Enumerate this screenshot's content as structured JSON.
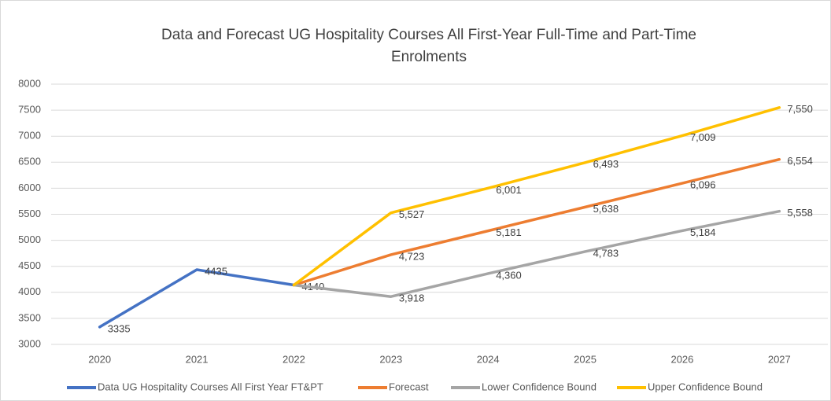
{
  "chart_data": {
    "type": "line",
    "title": [
      "Data and Forecast UG Hospitality Courses All First-Year Full-Time and Part-Time",
      "Enrolments"
    ],
    "categories": [
      "2020",
      "2021",
      "2022",
      "2023",
      "2024",
      "2025",
      "2026",
      "2027"
    ],
    "ylim": [
      3000,
      8000
    ],
    "yticks": [
      3000,
      3500,
      4000,
      4500,
      5000,
      5500,
      6000,
      6500,
      7000,
      7500,
      8000
    ],
    "grid": true,
    "legend": "bottom",
    "series": [
      {
        "name": "Data UG Hospitality Courses All First Year FT&PT",
        "color": "#4472c4",
        "show_labels": true,
        "values": [
          3335,
          4435,
          4140,
          null,
          null,
          null,
          null,
          null
        ]
      },
      {
        "name": "Forecast",
        "color": "#ed7d31",
        "values": [
          null,
          null,
          4140,
          4723,
          5181,
          5638,
          6096,
          6554
        ],
        "value_labels": [
          null,
          null,
          null,
          "4,723",
          "5,181",
          "5,638",
          "6,096",
          "6,554"
        ]
      },
      {
        "name": "Lower Confidence Bound",
        "color": "#a5a5a5",
        "values": [
          null,
          null,
          4140,
          3918,
          4360,
          4783,
          5184,
          5558
        ],
        "value_labels": [
          null,
          null,
          null,
          "3,918",
          "4,360",
          "4,783",
          "5,184",
          "5,558"
        ]
      },
      {
        "name": "Upper Confidence Bound",
        "color": "#ffc000",
        "values": [
          null,
          null,
          4140,
          5527,
          6001,
          6493,
          7009,
          7550
        ],
        "value_labels": [
          null,
          null,
          null,
          "5,527",
          "6,001",
          "6,493",
          "7,009",
          "7,550"
        ]
      }
    ]
  }
}
